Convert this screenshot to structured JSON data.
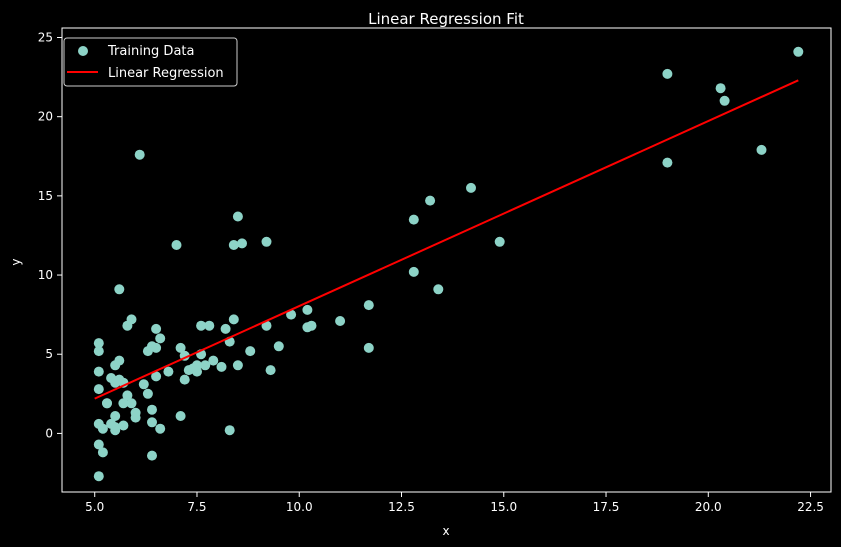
{
  "chart_data": {
    "type": "scatter",
    "title": "Linear Regression Fit",
    "xlabel": "x",
    "ylabel": "y",
    "xlim": [
      4.2,
      23.0
    ],
    "ylim": [
      -3.7,
      25.6
    ],
    "xticks": [
      5.0,
      7.5,
      10.0,
      12.5,
      15.0,
      17.5,
      20.0,
      22.5
    ],
    "xtick_labels": [
      "5.0",
      "7.5",
      "10.0",
      "12.5",
      "15.0",
      "17.5",
      "20.0",
      "22.5"
    ],
    "yticks": [
      0,
      5,
      10,
      15,
      20,
      25
    ],
    "ytick_labels": [
      "0",
      "5",
      "10",
      "15",
      "20",
      "25"
    ],
    "grid": false,
    "legend_position": "top-left",
    "colors": {
      "scatter": "#8dd3c7",
      "line": "#ff0000",
      "background": "#000000",
      "foreground": "#ffffff"
    },
    "series": [
      {
        "name": "Training Data",
        "kind": "scatter",
        "points": [
          [
            22.2,
            24.1
          ],
          [
            20.3,
            21.8
          ],
          [
            20.4,
            21.0
          ],
          [
            19.0,
            22.7
          ],
          [
            19.0,
            17.1
          ],
          [
            21.3,
            17.9
          ],
          [
            14.2,
            15.5
          ],
          [
            14.9,
            12.1
          ],
          [
            13.2,
            14.7
          ],
          [
            12.8,
            13.5
          ],
          [
            12.8,
            10.2
          ],
          [
            13.4,
            9.1
          ],
          [
            11.7,
            8.1
          ],
          [
            11.7,
            5.4
          ],
          [
            11.0,
            7.1
          ],
          [
            10.2,
            7.8
          ],
          [
            10.2,
            6.7
          ],
          [
            10.3,
            6.8
          ],
          [
            9.8,
            7.5
          ],
          [
            9.5,
            5.5
          ],
          [
            9.3,
            4.0
          ],
          [
            9.2,
            6.8
          ],
          [
            9.2,
            12.1
          ],
          [
            8.8,
            5.2
          ],
          [
            8.6,
            12.0
          ],
          [
            8.5,
            13.7
          ],
          [
            8.4,
            11.9
          ],
          [
            8.5,
            4.3
          ],
          [
            8.4,
            7.2
          ],
          [
            8.3,
            5.8
          ],
          [
            8.2,
            6.6
          ],
          [
            8.3,
            0.2
          ],
          [
            8.1,
            4.2
          ],
          [
            7.9,
            4.6
          ],
          [
            7.8,
            6.8
          ],
          [
            7.6,
            6.8
          ],
          [
            7.6,
            5.0
          ],
          [
            7.7,
            4.3
          ],
          [
            7.5,
            4.3
          ],
          [
            7.5,
            3.9
          ],
          [
            7.4,
            4.1
          ],
          [
            7.3,
            4.0
          ],
          [
            7.2,
            4.9
          ],
          [
            7.2,
            3.4
          ],
          [
            7.1,
            5.4
          ],
          [
            7.1,
            1.1
          ],
          [
            7.0,
            11.9
          ],
          [
            6.8,
            3.9
          ],
          [
            6.6,
            6.0
          ],
          [
            6.5,
            6.6
          ],
          [
            6.5,
            5.4
          ],
          [
            6.5,
            3.6
          ],
          [
            6.6,
            0.3
          ],
          [
            6.4,
            5.5
          ],
          [
            6.3,
            5.2
          ],
          [
            6.4,
            1.5
          ],
          [
            6.4,
            0.7
          ],
          [
            6.4,
            -1.4
          ],
          [
            6.3,
            2.5
          ],
          [
            6.2,
            3.1
          ],
          [
            6.1,
            17.6
          ],
          [
            6.0,
            1.0
          ],
          [
            6.0,
            1.3
          ],
          [
            5.9,
            7.2
          ],
          [
            5.8,
            6.8
          ],
          [
            5.9,
            1.9
          ],
          [
            5.8,
            2.4
          ],
          [
            5.7,
            1.9
          ],
          [
            5.7,
            0.5
          ],
          [
            5.7,
            3.2
          ],
          [
            5.6,
            9.1
          ],
          [
            5.6,
            4.6
          ],
          [
            5.6,
            3.4
          ],
          [
            5.5,
            4.3
          ],
          [
            5.5,
            3.2
          ],
          [
            5.5,
            1.1
          ],
          [
            5.5,
            0.4
          ],
          [
            5.5,
            0.2
          ],
          [
            5.4,
            3.5
          ],
          [
            5.4,
            0.6
          ],
          [
            5.3,
            1.9
          ],
          [
            5.3,
            1.9
          ],
          [
            5.2,
            -1.2
          ],
          [
            5.2,
            0.3
          ],
          [
            5.1,
            -0.7
          ],
          [
            5.1,
            5.7
          ],
          [
            5.1,
            5.2
          ],
          [
            5.1,
            3.9
          ],
          [
            5.1,
            2.8
          ],
          [
            5.1,
            0.6
          ],
          [
            5.1,
            -2.7
          ]
        ]
      },
      {
        "name": "Linear Regression",
        "kind": "line",
        "points": [
          [
            5.0,
            2.2
          ],
          [
            22.2,
            22.3
          ]
        ]
      }
    ]
  }
}
